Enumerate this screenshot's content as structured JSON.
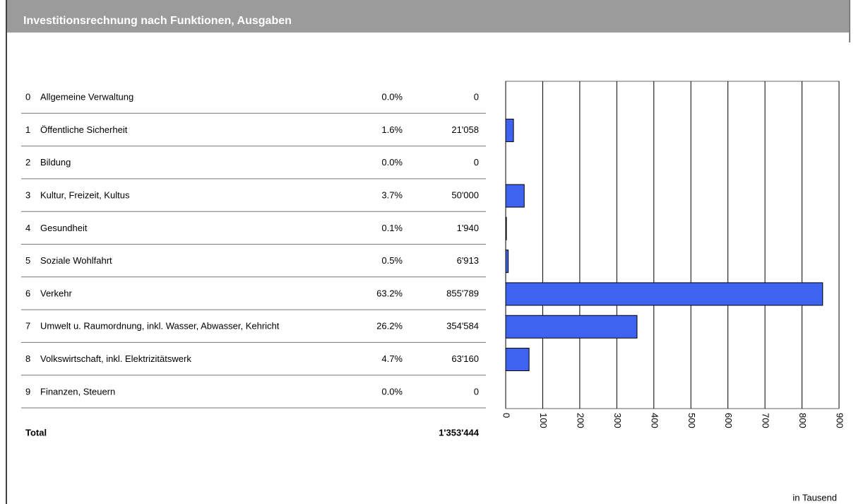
{
  "title": "Investitionsrechnung nach Funktionen, Ausgaben",
  "table": {
    "rows": [
      [
        "0",
        "Allgemeine Verwaltung",
        "0.0%",
        "0"
      ],
      [
        "1",
        "Öffentliche Sicherheit",
        "1.6%",
        "21'058"
      ],
      [
        "2",
        "Bildung",
        "0.0%",
        "0"
      ],
      [
        "3",
        "Kultur, Freizeit, Kultus",
        "3.7%",
        "50'000"
      ],
      [
        "4",
        "Gesundheit",
        "0.1%",
        "1'940"
      ],
      [
        "5",
        "Soziale Wohlfahrt",
        "0.5%",
        "6'913"
      ],
      [
        "6",
        "Verkehr",
        "63.2%",
        "855'789"
      ],
      [
        "7",
        "Umwelt u. Raumordnung, inkl. Wasser, Abwasser, Kehricht",
        "26.2%",
        "354'584"
      ],
      [
        "8",
        "Volkswirtschaft, inkl. Elektrizitätswerk",
        "4.7%",
        "63'160"
      ],
      [
        "9",
        "Finanzen, Steuern",
        "0.0%",
        "0"
      ]
    ],
    "total": {
      "label": "Total",
      "value": "1'353'444"
    }
  },
  "chart_data": {
    "type": "bar",
    "orientation": "horizontal",
    "values": [
      0,
      21.058,
      0,
      50,
      1.94,
      6.913,
      855.789,
      354.584,
      63.16,
      0
    ],
    "color": "#3d63f0",
    "xlim": [
      0,
      900
    ],
    "xticks": [
      0,
      100,
      200,
      300,
      400,
      500,
      600,
      700,
      800,
      900
    ],
    "grid": true,
    "unit_note": "in Tausend"
  }
}
